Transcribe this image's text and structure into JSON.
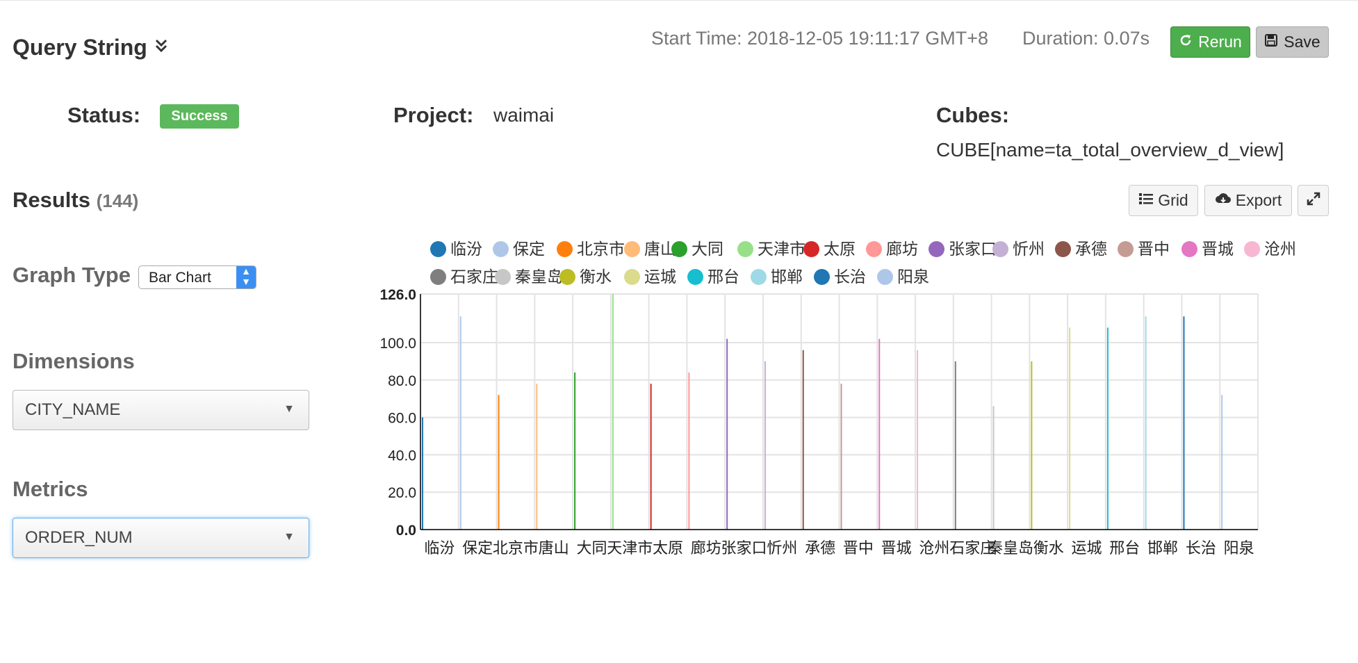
{
  "query": {
    "title": "Query String",
    "toggle_icon": "chevron-double-down-icon"
  },
  "meta": {
    "start_time": "Start Time: 2018-12-05 19:11:17 GMT+8",
    "duration": "Duration: 0.07s"
  },
  "buttons": {
    "rerun": "Rerun",
    "save": "Save",
    "grid": "Grid",
    "export": "Export"
  },
  "status": {
    "label": "Status:",
    "value": "Success"
  },
  "project": {
    "label": "Project:",
    "value": "waimai"
  },
  "cubes": {
    "label": "Cubes:",
    "value": "CUBE[name=ta_total_overview_d_view]"
  },
  "results": {
    "label": "Results",
    "count": "(144)"
  },
  "graph_type": {
    "label": "Graph Type",
    "selected": "Bar Chart"
  },
  "dimensions": {
    "label": "Dimensions",
    "selected": "CITY_NAME"
  },
  "metrics": {
    "label": "Metrics",
    "selected": "ORDER_NUM"
  },
  "colors": {
    "success": "#5cb85c",
    "rerun": "#4cae4c",
    "focus": "#66afe9"
  },
  "chart_data": {
    "type": "bar",
    "categories": [
      "临汾",
      "保定",
      "北京市",
      "唐山",
      "大同",
      "天津市",
      "太原",
      "廊坊",
      "张家口",
      "忻州",
      "承德",
      "晋中",
      "晋城",
      "沧州",
      "石家庄",
      "秦皇岛",
      "衡水",
      "运城",
      "邢台",
      "邯郸",
      "长治",
      "阳泉"
    ],
    "values": [
      60,
      114,
      72,
      78,
      84,
      126,
      78,
      84,
      102,
      90,
      96,
      78,
      102,
      96,
      90,
      66,
      90,
      108,
      108,
      114,
      114,
      72
    ],
    "series_colors": [
      "#1f77b4",
      "#aec7e8",
      "#ff7f0e",
      "#ffbb78",
      "#2ca02c",
      "#98df8a",
      "#d62728",
      "#ff9896",
      "#9467bd",
      "#c5b0d5",
      "#8c564b",
      "#c49c94",
      "#e377c2",
      "#f7b6d2",
      "#7f7f7f",
      "#c7c7c7",
      "#bcbd22",
      "#dbdb8d",
      "#17becf",
      "#9edae5",
      "#1f77b4",
      "#aec7e8"
    ],
    "y_ticks": [
      "126.0",
      "100.0",
      "80.0",
      "60.0",
      "40.0",
      "20.0",
      "0.0"
    ],
    "y_tick_values": [
      126,
      100,
      80,
      60,
      40,
      20,
      0
    ],
    "ylim": [
      0,
      126
    ],
    "xlabel": "",
    "ylabel": "",
    "legend_position": "top"
  }
}
